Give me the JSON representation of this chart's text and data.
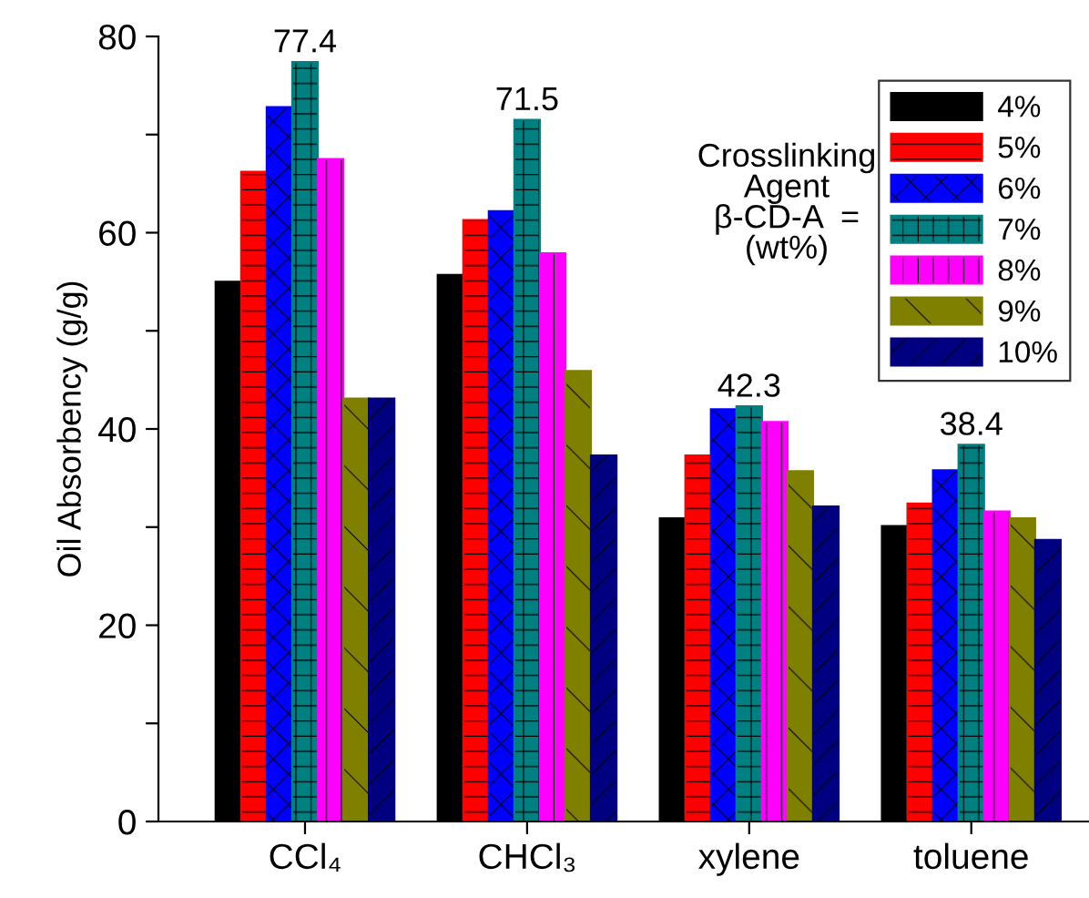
{
  "chart_data": {
    "type": "bar",
    "categories": [
      "CCl₄",
      "CHCl₃",
      "xylene",
      "toluene"
    ],
    "ylabel": "Oil Absorbency (g/g)",
    "ylim": [
      0,
      80
    ],
    "yticks": [
      0,
      {
        "value": 10,
        "label": null
      },
      20,
      {
        "value": 30,
        "label": null
      },
      40,
      {
        "value": 50,
        "label": null
      },
      60,
      {
        "value": 70,
        "label": null
      },
      80
    ],
    "legend_title": "Crosslinking\nAgent\nβ-CD-A  =\n(wt%)",
    "legend": "top right",
    "grid": false,
    "series": [
      {
        "name": "4%",
        "color": "#000000",
        "values": [
          55.0,
          55.7,
          30.9,
          30.1
        ]
      },
      {
        "name": "5%",
        "color": "#ff0000",
        "values": [
          66.2,
          61.3,
          37.3,
          32.4
        ]
      },
      {
        "name": "6%",
        "color": "#0000ff",
        "values": [
          72.8,
          62.2,
          42.0,
          35.8
        ]
      },
      {
        "name": "7%",
        "color": "#008080",
        "values": [
          77.4,
          71.5,
          42.3,
          38.4
        ],
        "value_labels": [
          "77.4",
          "71.5",
          "42.3",
          "38.4"
        ]
      },
      {
        "name": "8%",
        "color": "#ff00ff",
        "values": [
          67.5,
          57.9,
          40.7,
          31.6
        ]
      },
      {
        "name": "9%",
        "color": "#808000",
        "values": [
          43.1,
          45.9,
          35.7,
          30.9
        ]
      },
      {
        "name": "10%",
        "color": "#000080",
        "values": [
          43.1,
          37.3,
          32.1,
          28.7
        ]
      }
    ]
  }
}
